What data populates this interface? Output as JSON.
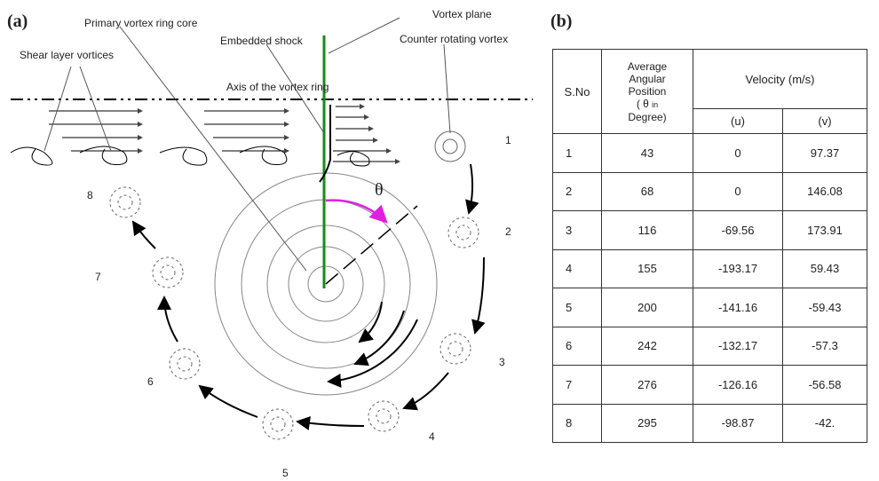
{
  "panel_a": {
    "label": "(a)",
    "annotations": {
      "core": "Primary vortex ring core",
      "plane": "Vortex plane",
      "shock": "Embedded shock",
      "counter": "Counter rotating vortex",
      "shear": "Shear layer vortices",
      "axis": "Axis of the vortex ring"
    },
    "theta": "θ",
    "positions": [
      "1",
      "2",
      "3",
      "4",
      "5",
      "6",
      "7",
      "8"
    ]
  },
  "panel_b": {
    "label": "(b)",
    "table": {
      "header": {
        "sno": "S.No",
        "angular": [
          "Average",
          "Angular",
          "Position",
          "( θ",
          "in",
          "Degree)"
        ],
        "velocity": "Velocity (m/s)",
        "u": "(u)",
        "v": "(v)"
      },
      "rows": [
        [
          "1",
          "43",
          "0",
          "97.37"
        ],
        [
          "2",
          "68",
          "0",
          "146.08"
        ],
        [
          "3",
          "116",
          "-69.56",
          "173.91"
        ],
        [
          "4",
          "155",
          "-193.17",
          "59.43"
        ],
        [
          "5",
          "200",
          "-141.16",
          "-59.43"
        ],
        [
          "6",
          "242",
          "-132.17",
          "-57.3"
        ],
        [
          "7",
          "276",
          "-126.16",
          "-56.58"
        ],
        [
          "8",
          "295",
          "-98.87",
          "-42."
        ]
      ]
    }
  }
}
